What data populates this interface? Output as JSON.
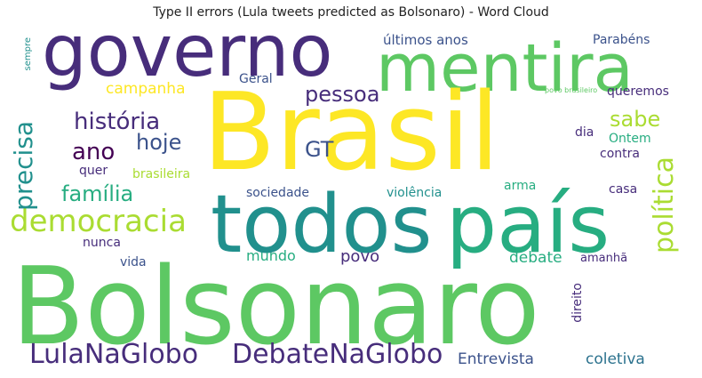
{
  "title": "Type II errors (Lula tweets predicted as Bolsonaro) - Word Cloud",
  "colors": {
    "purple_dark": "#440154",
    "purple": "#472d7b",
    "indigo": "#3b528b",
    "blue": "#2c728e",
    "teal": "#21908d",
    "teal_green": "#27ad81",
    "green": "#5dc863",
    "lime": "#aadc32",
    "yellow": "#fde725"
  },
  "words": [
    {
      "text": "Brasil"
    },
    {
      "text": "Bolsonaro"
    },
    {
      "text": "governo"
    },
    {
      "text": "mentira"
    },
    {
      "text": "todos"
    },
    {
      "text": "país"
    },
    {
      "text": "democracia"
    },
    {
      "text": "LulaNaGlobo"
    },
    {
      "text": "DebateNaGlobo"
    },
    {
      "text": "política"
    },
    {
      "text": "história"
    },
    {
      "text": "família"
    },
    {
      "text": "precisa"
    },
    {
      "text": "pessoa"
    },
    {
      "text": "hoje"
    },
    {
      "text": "ano"
    },
    {
      "text": "sabe"
    },
    {
      "text": "GT"
    },
    {
      "text": "campanha"
    },
    {
      "text": "últimos anos"
    },
    {
      "text": "Parabéns"
    },
    {
      "text": "queremos"
    },
    {
      "text": "Geral"
    },
    {
      "text": "povo brasileiro"
    },
    {
      "text": "Ontem"
    },
    {
      "text": "dia"
    },
    {
      "text": "contra"
    },
    {
      "text": "brasileira"
    },
    {
      "text": "quer"
    },
    {
      "text": "sociedade"
    },
    {
      "text": "violência"
    },
    {
      "text": "arma"
    },
    {
      "text": "casa"
    },
    {
      "text": "nunca"
    },
    {
      "text": "mundo"
    },
    {
      "text": "povo"
    },
    {
      "text": "debate"
    },
    {
      "text": "amanhã"
    },
    {
      "text": "vida"
    },
    {
      "text": "direito"
    },
    {
      "text": "Entrevista"
    },
    {
      "text": "coletiva"
    },
    {
      "text": "sempre"
    }
  ]
}
